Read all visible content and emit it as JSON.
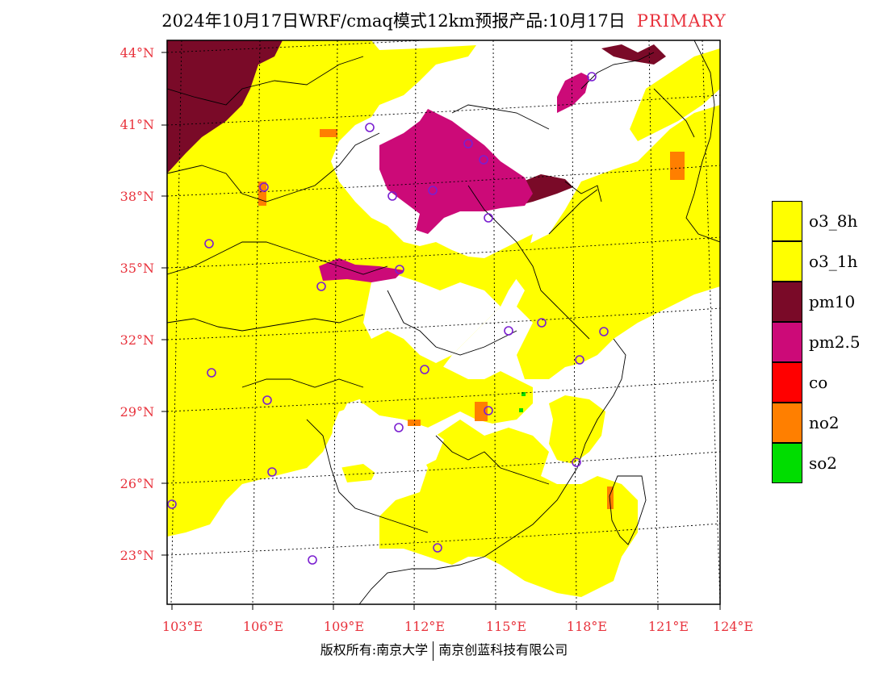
{
  "title": {
    "main": "2024年10月17日WRF/cmaq模式12km预报产品:10月17日",
    "tag": "PRIMARY"
  },
  "axes": {
    "lat_labels": [
      "44°N",
      "41°N",
      "38°N",
      "35°N",
      "32°N",
      "29°N",
      "26°N",
      "23°N"
    ],
    "lon_labels": [
      "103°E",
      "106°E",
      "109°E",
      "112°E",
      "115°E",
      "118°E",
      "121°E",
      "124°E"
    ],
    "label_color": "#e8323c"
  },
  "legend": [
    {
      "label": "o3_8h",
      "color": "#ffff00"
    },
    {
      "label": "o3_1h",
      "color": "#ffff00"
    },
    {
      "label": "pm10",
      "color": "#7a0a28"
    },
    {
      "label": "pm2.5",
      "color": "#cc0a78"
    },
    {
      "label": "co",
      "color": "#ff0000"
    },
    {
      "label": "no2",
      "color": "#ff7f00"
    },
    {
      "label": "so2",
      "color": "#00dd00"
    }
  ],
  "footer": {
    "left": "版权所有:南京大学",
    "right": "南京创蓝科技有限公司"
  },
  "map": {
    "station_marker_color": "#7a1fd0"
  }
}
